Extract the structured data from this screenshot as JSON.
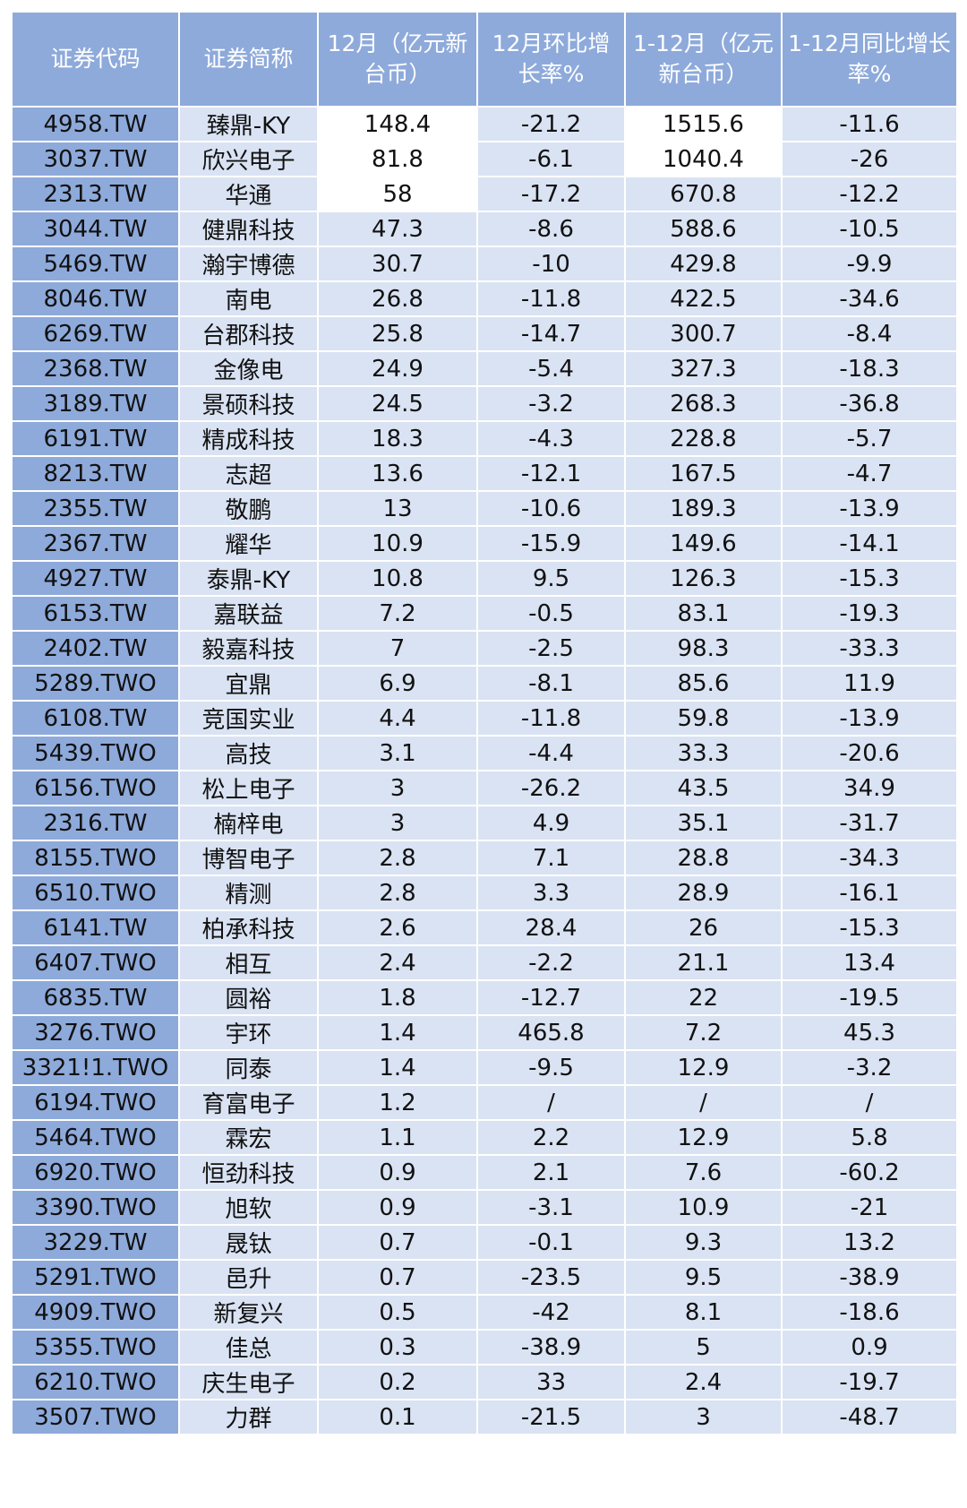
{
  "table": {
    "header": [
      "证券代码",
      "证券简称",
      "12月（亿元新台币）",
      "12月环比增长率%",
      "1-12月（亿元新台币）",
      "1-12月同比增长率%"
    ],
    "rows": [
      [
        "4958.TW",
        "臻鼎-KY",
        148.4,
        -21.2,
        1515.6,
        -11.6
      ],
      [
        "3037.TW",
        "欣兴电子",
        81.8,
        -6.1,
        1040.4,
        -26
      ],
      [
        "2313.TW",
        "华通",
        58,
        -17.2,
        670.8,
        -12.2
      ],
      [
        "3044.TW",
        "健鼎科技",
        47.3,
        -8.6,
        588.6,
        -10.5
      ],
      [
        "5469.TW",
        "瀚宇博德",
        30.7,
        -10,
        429.8,
        -9.9
      ],
      [
        "8046.TW",
        "南电",
        26.8,
        -11.8,
        422.5,
        -34.6
      ],
      [
        "6269.TW",
        "台郡科技",
        25.8,
        -14.7,
        300.7,
        -8.4
      ],
      [
        "2368.TW",
        "金像电",
        24.9,
        -5.4,
        327.3,
        -18.3
      ],
      [
        "3189.TW",
        "景硕科技",
        24.5,
        -3.2,
        268.3,
        -36.8
      ],
      [
        "6191.TW",
        "精成科技",
        18.3,
        -4.3,
        228.8,
        -5.7
      ],
      [
        "8213.TW",
        "志超",
        13.6,
        -12.1,
        167.5,
        -4.7
      ],
      [
        "2355.TW",
        "敬鹏",
        13,
        -10.6,
        189.3,
        -13.9
      ],
      [
        "2367.TW",
        "耀华",
        10.9,
        -15.9,
        149.6,
        -14.1
      ],
      [
        "4927.TW",
        "泰鼎-KY",
        10.8,
        9.5,
        126.3,
        -15.3
      ],
      [
        "6153.TW",
        "嘉联益",
        7.2,
        -0.5,
        83.1,
        -19.3
      ],
      [
        "2402.TW",
        "毅嘉科技",
        7,
        -2.5,
        98.3,
        -33.3
      ],
      [
        "5289.TWO",
        "宜鼎",
        6.9,
        -8.1,
        85.6,
        11.9
      ],
      [
        "6108.TW",
        "竞国实业",
        4.4,
        -11.8,
        59.8,
        -13.9
      ],
      [
        "5439.TWO",
        "高技",
        3.1,
        -4.4,
        33.3,
        -20.6
      ],
      [
        "6156.TWO",
        "松上电子",
        3,
        -26.2,
        43.5,
        34.9
      ],
      [
        "2316.TW",
        "楠梓电",
        3,
        4.9,
        35.1,
        -31.7
      ],
      [
        "8155.TWO",
        "博智电子",
        2.8,
        7.1,
        28.8,
        -34.3
      ],
      [
        "6510.TWO",
        "精测",
        2.8,
        3.3,
        28.9,
        -16.1
      ],
      [
        "6141.TW",
        "柏承科技",
        2.6,
        28.4,
        26,
        -15.3
      ],
      [
        "6407.TWO",
        "相互",
        2.4,
        -2.2,
        21.1,
        13.4
      ],
      [
        "6835.TW",
        "圆裕",
        1.8,
        -12.7,
        22,
        -19.5
      ],
      [
        "3276.TWO",
        "宇环",
        1.4,
        465.8,
        7.2,
        45.3
      ],
      [
        "3321!1.TWO",
        "同泰",
        1.4,
        -9.5,
        12.9,
        -3.2
      ],
      [
        "6194.TWO",
        "育富电子",
        1.2,
        "/",
        "/",
        "/"
      ],
      [
        "5464.TWO",
        "霖宏",
        1.1,
        2.2,
        12.9,
        5.8
      ],
      [
        "6920.TWO",
        "恒劲科技",
        0.9,
        2.1,
        7.6,
        -60.2
      ],
      [
        "3390.TWO",
        "旭软",
        0.9,
        -3.1,
        10.9,
        -21
      ],
      [
        "3229.TW",
        "晟钛",
        0.7,
        -0.1,
        9.3,
        13.2
      ],
      [
        "5291.TWO",
        "邑升",
        0.7,
        -23.5,
        9.5,
        -38.9
      ],
      [
        "4909.TWO",
        "新复兴",
        0.5,
        -42,
        8.1,
        -18.6
      ],
      [
        "5355.TWO",
        "佳总",
        0.3,
        -38.9,
        5,
        0.9
      ],
      [
        "6210.TWO",
        "庆生电子",
        0.2,
        33,
        2.4,
        -19.7
      ],
      [
        "3507.TWO",
        "力群",
        0.1,
        -21.5,
        3,
        -48.7
      ]
    ]
  }
}
